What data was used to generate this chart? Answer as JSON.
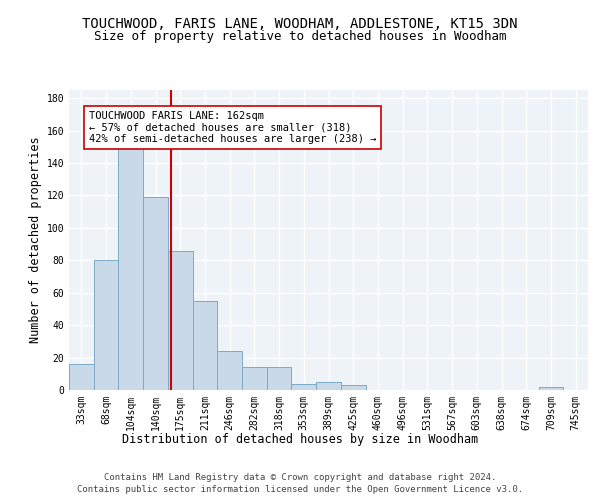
{
  "title": "TOUCHWOOD, FARIS LANE, WOODHAM, ADDLESTONE, KT15 3DN",
  "subtitle": "Size of property relative to detached houses in Woodham",
  "xlabel": "Distribution of detached houses by size in Woodham",
  "ylabel": "Number of detached properties",
  "bar_labels": [
    "33sqm",
    "68sqm",
    "104sqm",
    "140sqm",
    "175sqm",
    "211sqm",
    "246sqm",
    "282sqm",
    "318sqm",
    "353sqm",
    "389sqm",
    "425sqm",
    "460sqm",
    "496sqm",
    "531sqm",
    "567sqm",
    "603sqm",
    "638sqm",
    "674sqm",
    "709sqm",
    "745sqm"
  ],
  "bar_values": [
    16,
    80,
    150,
    119,
    86,
    55,
    24,
    14,
    14,
    4,
    5,
    3,
    0,
    0,
    0,
    0,
    0,
    0,
    0,
    2,
    0
  ],
  "bar_color": "#c9d9e8",
  "bar_edgecolor": "#7aaac8",
  "background_color": "#eef3f8",
  "grid_color": "#ffffff",
  "vline_x": 3.62,
  "vline_color": "#cc0000",
  "annotation_text": "TOUCHWOOD FARIS LANE: 162sqm\n← 57% of detached houses are smaller (318)\n42% of semi-detached houses are larger (238) →",
  "annotation_box_color": "#ffffff",
  "annotation_box_edgecolor": "#cc0000",
  "ylim": [
    0,
    185
  ],
  "yticks": [
    0,
    20,
    40,
    60,
    80,
    100,
    120,
    140,
    160,
    180
  ],
  "footer_line1": "Contains HM Land Registry data © Crown copyright and database right 2024.",
  "footer_line2": "Contains public sector information licensed under the Open Government Licence v3.0.",
  "title_fontsize": 10,
  "subtitle_fontsize": 9,
  "xlabel_fontsize": 8.5,
  "ylabel_fontsize": 8.5,
  "tick_fontsize": 7,
  "annotation_fontsize": 7.5,
  "footer_fontsize": 6.5
}
